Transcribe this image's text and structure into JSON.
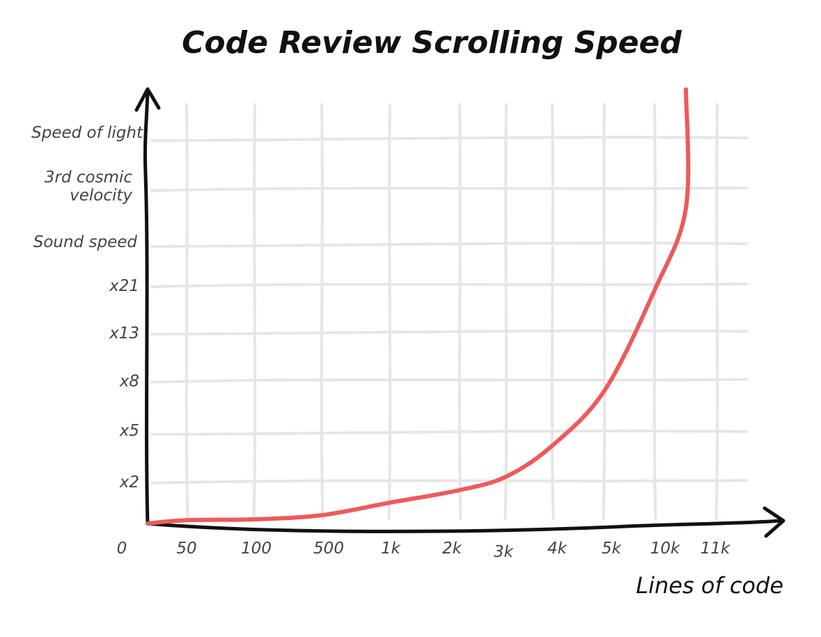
{
  "chart_data": {
    "type": "line",
    "title": "Code Review Scrolling Speed",
    "xlabel": "Lines of code",
    "ylabel": "",
    "x_ticks": [
      "0",
      "50",
      "100",
      "500",
      "1k",
      "2k",
      "3k",
      "4k",
      "5k",
      "10k",
      "11k"
    ],
    "y_ticks": [
      "x2",
      "x5",
      "x8",
      "x13",
      "x21",
      "Sound speed",
      "3rd cosmic\nvelocity",
      "Speed of light"
    ],
    "y_scale": "ordinal",
    "grid": true,
    "legend": "none",
    "series": [
      {
        "color": "#ee5a5a",
        "points": [
          {
            "x": "0",
            "y": 0.0
          },
          {
            "x": "50",
            "y": 0.08
          },
          {
            "x": "100",
            "y": 0.1
          },
          {
            "x": "500",
            "y": 0.2
          },
          {
            "x": "1k",
            "y": 0.5
          },
          {
            "x": "2k",
            "y": 0.8
          },
          {
            "x": "3k",
            "y": 1.1
          },
          {
            "x": "4k",
            "y": 1.7
          },
          {
            "x": "5k",
            "y": 2.8
          },
          {
            "x": "10k",
            "y": 4.9
          },
          {
            "x": "10.5k",
            "y": 6.6
          },
          {
            "x": "10.5k",
            "y": 8.8
          }
        ]
      }
    ]
  }
}
